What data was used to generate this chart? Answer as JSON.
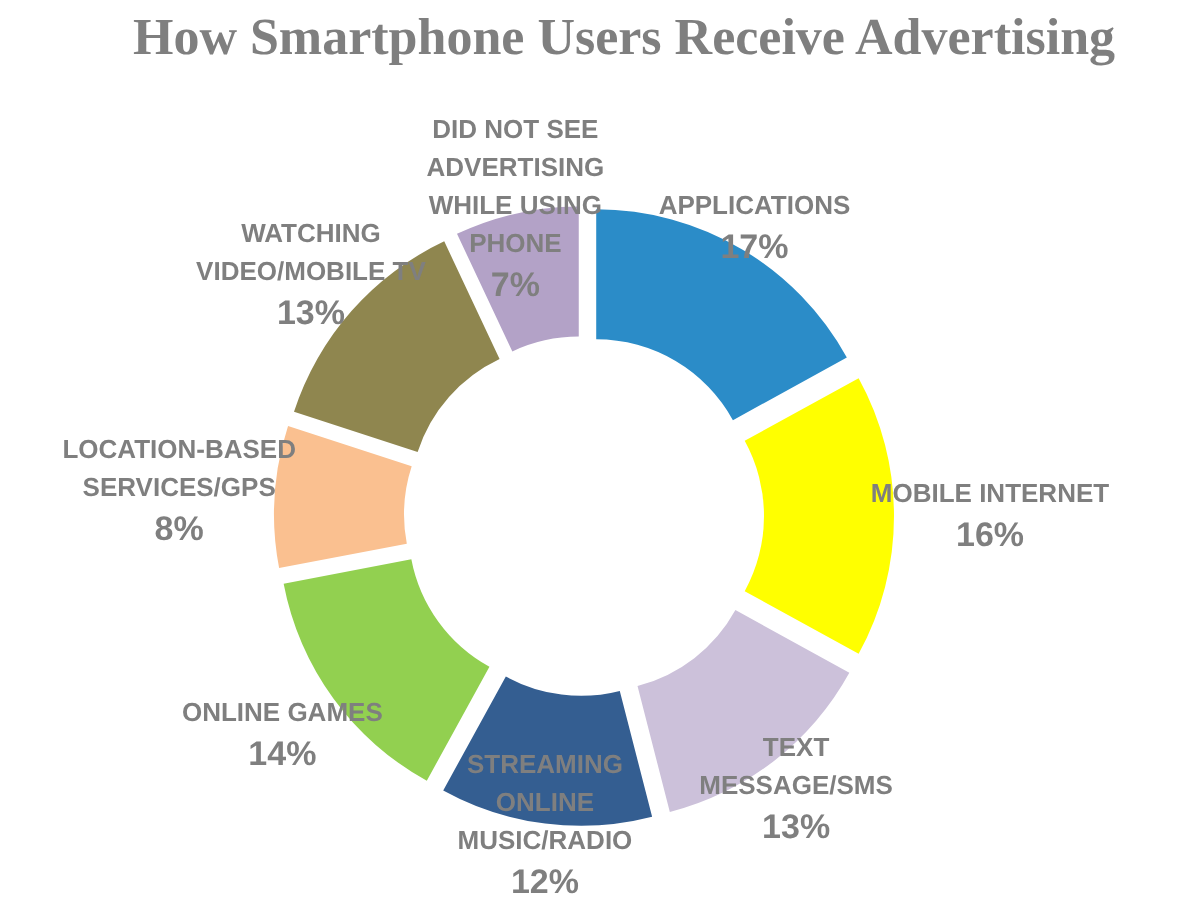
{
  "chart_data": {
    "type": "donut",
    "title": "How Smartphone Users Receive Advertising",
    "categories": [
      "APPLICATIONS",
      "MOBILE INTERNET",
      "TEXT MESSAGE/SMS",
      "STREAMING ONLINE MUSIC/RADIO",
      "ONLINE GAMES",
      "LOCATION-BASED SERVICES/GPS",
      "WATCHING VIDEO/MOBILE TV",
      "DID NOT SEE ADVERTISING WHILE USING PHONE"
    ],
    "values": [
      17,
      16,
      13,
      12,
      14,
      8,
      13,
      7
    ],
    "value_labels": [
      "17%",
      "16%",
      "13%",
      "12%",
      "14%",
      "8%",
      "13%",
      "7%"
    ],
    "colors": [
      "#2b8cc8",
      "#ffff00",
      "#ccc1da",
      "#345e91",
      "#92d050",
      "#fac090",
      "#8f864f",
      "#b3a2c7"
    ]
  }
}
